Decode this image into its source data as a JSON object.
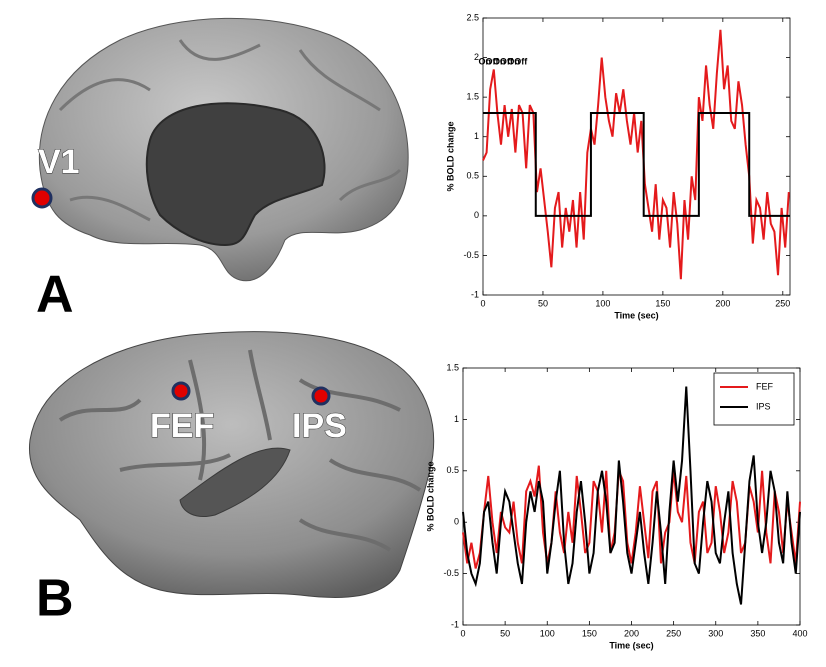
{
  "figure": {
    "panels": [
      {
        "label": "A",
        "regions": [
          "V1"
        ]
      },
      {
        "label": "B",
        "regions": [
          "FEF",
          "IPS"
        ]
      }
    ]
  },
  "chart_data": [
    {
      "type": "line",
      "x_label": "Time (sec)",
      "y_label": "% BOLD change",
      "annotations": [
        "On",
        "Off",
        "On",
        "Off",
        "On",
        "Off"
      ],
      "xlim": [
        0,
        256
      ],
      "xticks": [
        0,
        50,
        100,
        150,
        200,
        250
      ],
      "ylim": [
        -1,
        2.5
      ],
      "yticks": [
        -1,
        -0.5,
        0,
        0.5,
        1,
        1.5,
        2,
        2.5
      ],
      "series": [
        {
          "color": "#e41a1c",
          "x": [
            0,
            3,
            6,
            9,
            12,
            15,
            18,
            21,
            24,
            27,
            30,
            33,
            36,
            39,
            42,
            45,
            48,
            51,
            54,
            57,
            60,
            63,
            66,
            69,
            72,
            75,
            78,
            81,
            84,
            87,
            90,
            93,
            96,
            99,
            102,
            105,
            108,
            111,
            114,
            117,
            120,
            123,
            126,
            129,
            132,
            135,
            138,
            141,
            144,
            147,
            150,
            153,
            156,
            159,
            162,
            165,
            168,
            171,
            174,
            177,
            180,
            183,
            186,
            189,
            192,
            195,
            198,
            201,
            204,
            207,
            210,
            213,
            216,
            219,
            222,
            225,
            228,
            231,
            234,
            237,
            240,
            243,
            246,
            249,
            252,
            255
          ],
          "values": [
            0.7,
            0.8,
            1.6,
            1.85,
            1.3,
            0.9,
            1.4,
            1.0,
            1.35,
            0.8,
            1.4,
            1.3,
            0.6,
            1.4,
            1.3,
            0.3,
            0.6,
            0.2,
            -0.2,
            -0.65,
            0.1,
            0.3,
            -0.4,
            0.1,
            -0.2,
            0.2,
            -0.4,
            0.3,
            -0.3,
            0.8,
            1.1,
            0.9,
            1.4,
            2.0,
            1.5,
            1.2,
            1.0,
            1.55,
            1.3,
            1.6,
            1.2,
            0.9,
            1.3,
            0.8,
            1.2,
            0.4,
            0.1,
            -0.2,
            0.4,
            -0.3,
            0.2,
            0.1,
            -0.4,
            0.3,
            -0.1,
            -0.8,
            0.2,
            -0.3,
            0.5,
            0.2,
            1.5,
            1.2,
            1.9,
            1.4,
            1.1,
            1.8,
            2.35,
            1.6,
            1.9,
            1.2,
            1.1,
            1.7,
            1.4,
            0.9,
            0.5,
            -0.35,
            0.2,
            0.1,
            -0.3,
            0.3,
            -0.1,
            -0.2,
            -0.75,
            0.1,
            -0.4,
            0.3
          ]
        },
        {
          "color": "#000000",
          "x": [
            0,
            44,
            44,
            90,
            90,
            134,
            134,
            180,
            180,
            222,
            222,
            256
          ],
          "values": [
            1.3,
            1.3,
            0,
            0,
            1.3,
            1.3,
            0,
            0,
            1.3,
            1.3,
            0,
            0
          ]
        }
      ]
    },
    {
      "type": "line",
      "x_label": "Time (sec)",
      "y_label": "% BOLD change",
      "legend": "top-right",
      "xlim": [
        0,
        400
      ],
      "xticks": [
        0,
        50,
        100,
        150,
        200,
        250,
        300,
        350,
        400
      ],
      "ylim": [
        -1,
        1.5
      ],
      "yticks": [
        -1,
        -0.5,
        0,
        0.5,
        1,
        1.5
      ],
      "x": [
        0,
        5,
        10,
        15,
        20,
        25,
        30,
        35,
        40,
        45,
        50,
        55,
        60,
        65,
        70,
        75,
        80,
        85,
        90,
        95,
        100,
        105,
        110,
        115,
        120,
        125,
        130,
        135,
        140,
        145,
        150,
        155,
        160,
        165,
        170,
        175,
        180,
        185,
        190,
        195,
        200,
        205,
        210,
        215,
        220,
        225,
        230,
        235,
        240,
        245,
        250,
        255,
        260,
        265,
        270,
        275,
        280,
        285,
        290,
        295,
        300,
        305,
        310,
        315,
        320,
        325,
        330,
        335,
        340,
        345,
        350,
        355,
        360,
        365,
        370,
        375,
        380,
        385,
        390,
        395,
        400
      ],
      "series": [
        {
          "name": "FEF",
          "color": "#e41a1c",
          "values": [
            -0.1,
            -0.4,
            -0.2,
            -0.45,
            -0.3,
            0.1,
            0.45,
            0.0,
            -0.3,
            0.1,
            -0.05,
            -0.1,
            0.2,
            -0.2,
            -0.4,
            0.3,
            0.4,
            0.25,
            0.55,
            -0.1,
            -0.4,
            -0.2,
            0.3,
            -0.1,
            -0.3,
            0.1,
            -0.2,
            0.45,
            0.1,
            -0.3,
            -0.2,
            0.4,
            0.3,
            -0.1,
            0.5,
            -0.3,
            -0.1,
            0.5,
            0.4,
            -0.2,
            -0.4,
            -0.1,
            0.35,
            0.0,
            -0.35,
            0.3,
            0.4,
            -0.4,
            -0.1,
            0.0,
            0.5,
            0.1,
            0.0,
            0.45,
            -0.2,
            -0.4,
            0.1,
            0.2,
            -0.3,
            -0.2,
            0.35,
            0.1,
            -0.3,
            -0.1,
            0.4,
            0.2,
            -0.3,
            -0.2,
            0.35,
            0.2,
            -0.1,
            0.5,
            -0.1,
            -0.4,
            0.3,
            0.1,
            -0.3,
            0.2,
            -0.1,
            -0.4,
            0.2
          ]
        },
        {
          "name": "IPS",
          "color": "#000000",
          "values": [
            0.1,
            -0.3,
            -0.5,
            -0.6,
            -0.4,
            0.1,
            0.2,
            -0.2,
            -0.5,
            0.0,
            0.3,
            0.2,
            -0.1,
            -0.4,
            -0.6,
            0.0,
            0.3,
            0.1,
            0.4,
            0.2,
            -0.5,
            -0.2,
            0.2,
            0.5,
            -0.2,
            -0.6,
            -0.4,
            0.1,
            0.4,
            0.0,
            -0.5,
            -0.3,
            0.3,
            0.5,
            0.2,
            -0.3,
            -0.2,
            0.6,
            0.2,
            -0.3,
            -0.5,
            -0.2,
            0.1,
            -0.3,
            -0.6,
            -0.2,
            0.3,
            -0.1,
            -0.6,
            0.1,
            0.6,
            0.2,
            0.6,
            1.32,
            0.5,
            -0.4,
            -0.5,
            0.0,
            0.4,
            0.2,
            -0.3,
            -0.4,
            0.0,
            0.3,
            -0.3,
            -0.6,
            -0.8,
            -0.2,
            0.4,
            0.65,
            0.0,
            -0.3,
            0.0,
            0.5,
            0.3,
            -0.2,
            -0.4,
            0.3,
            -0.2,
            -0.5,
            0.1
          ]
        }
      ]
    }
  ]
}
